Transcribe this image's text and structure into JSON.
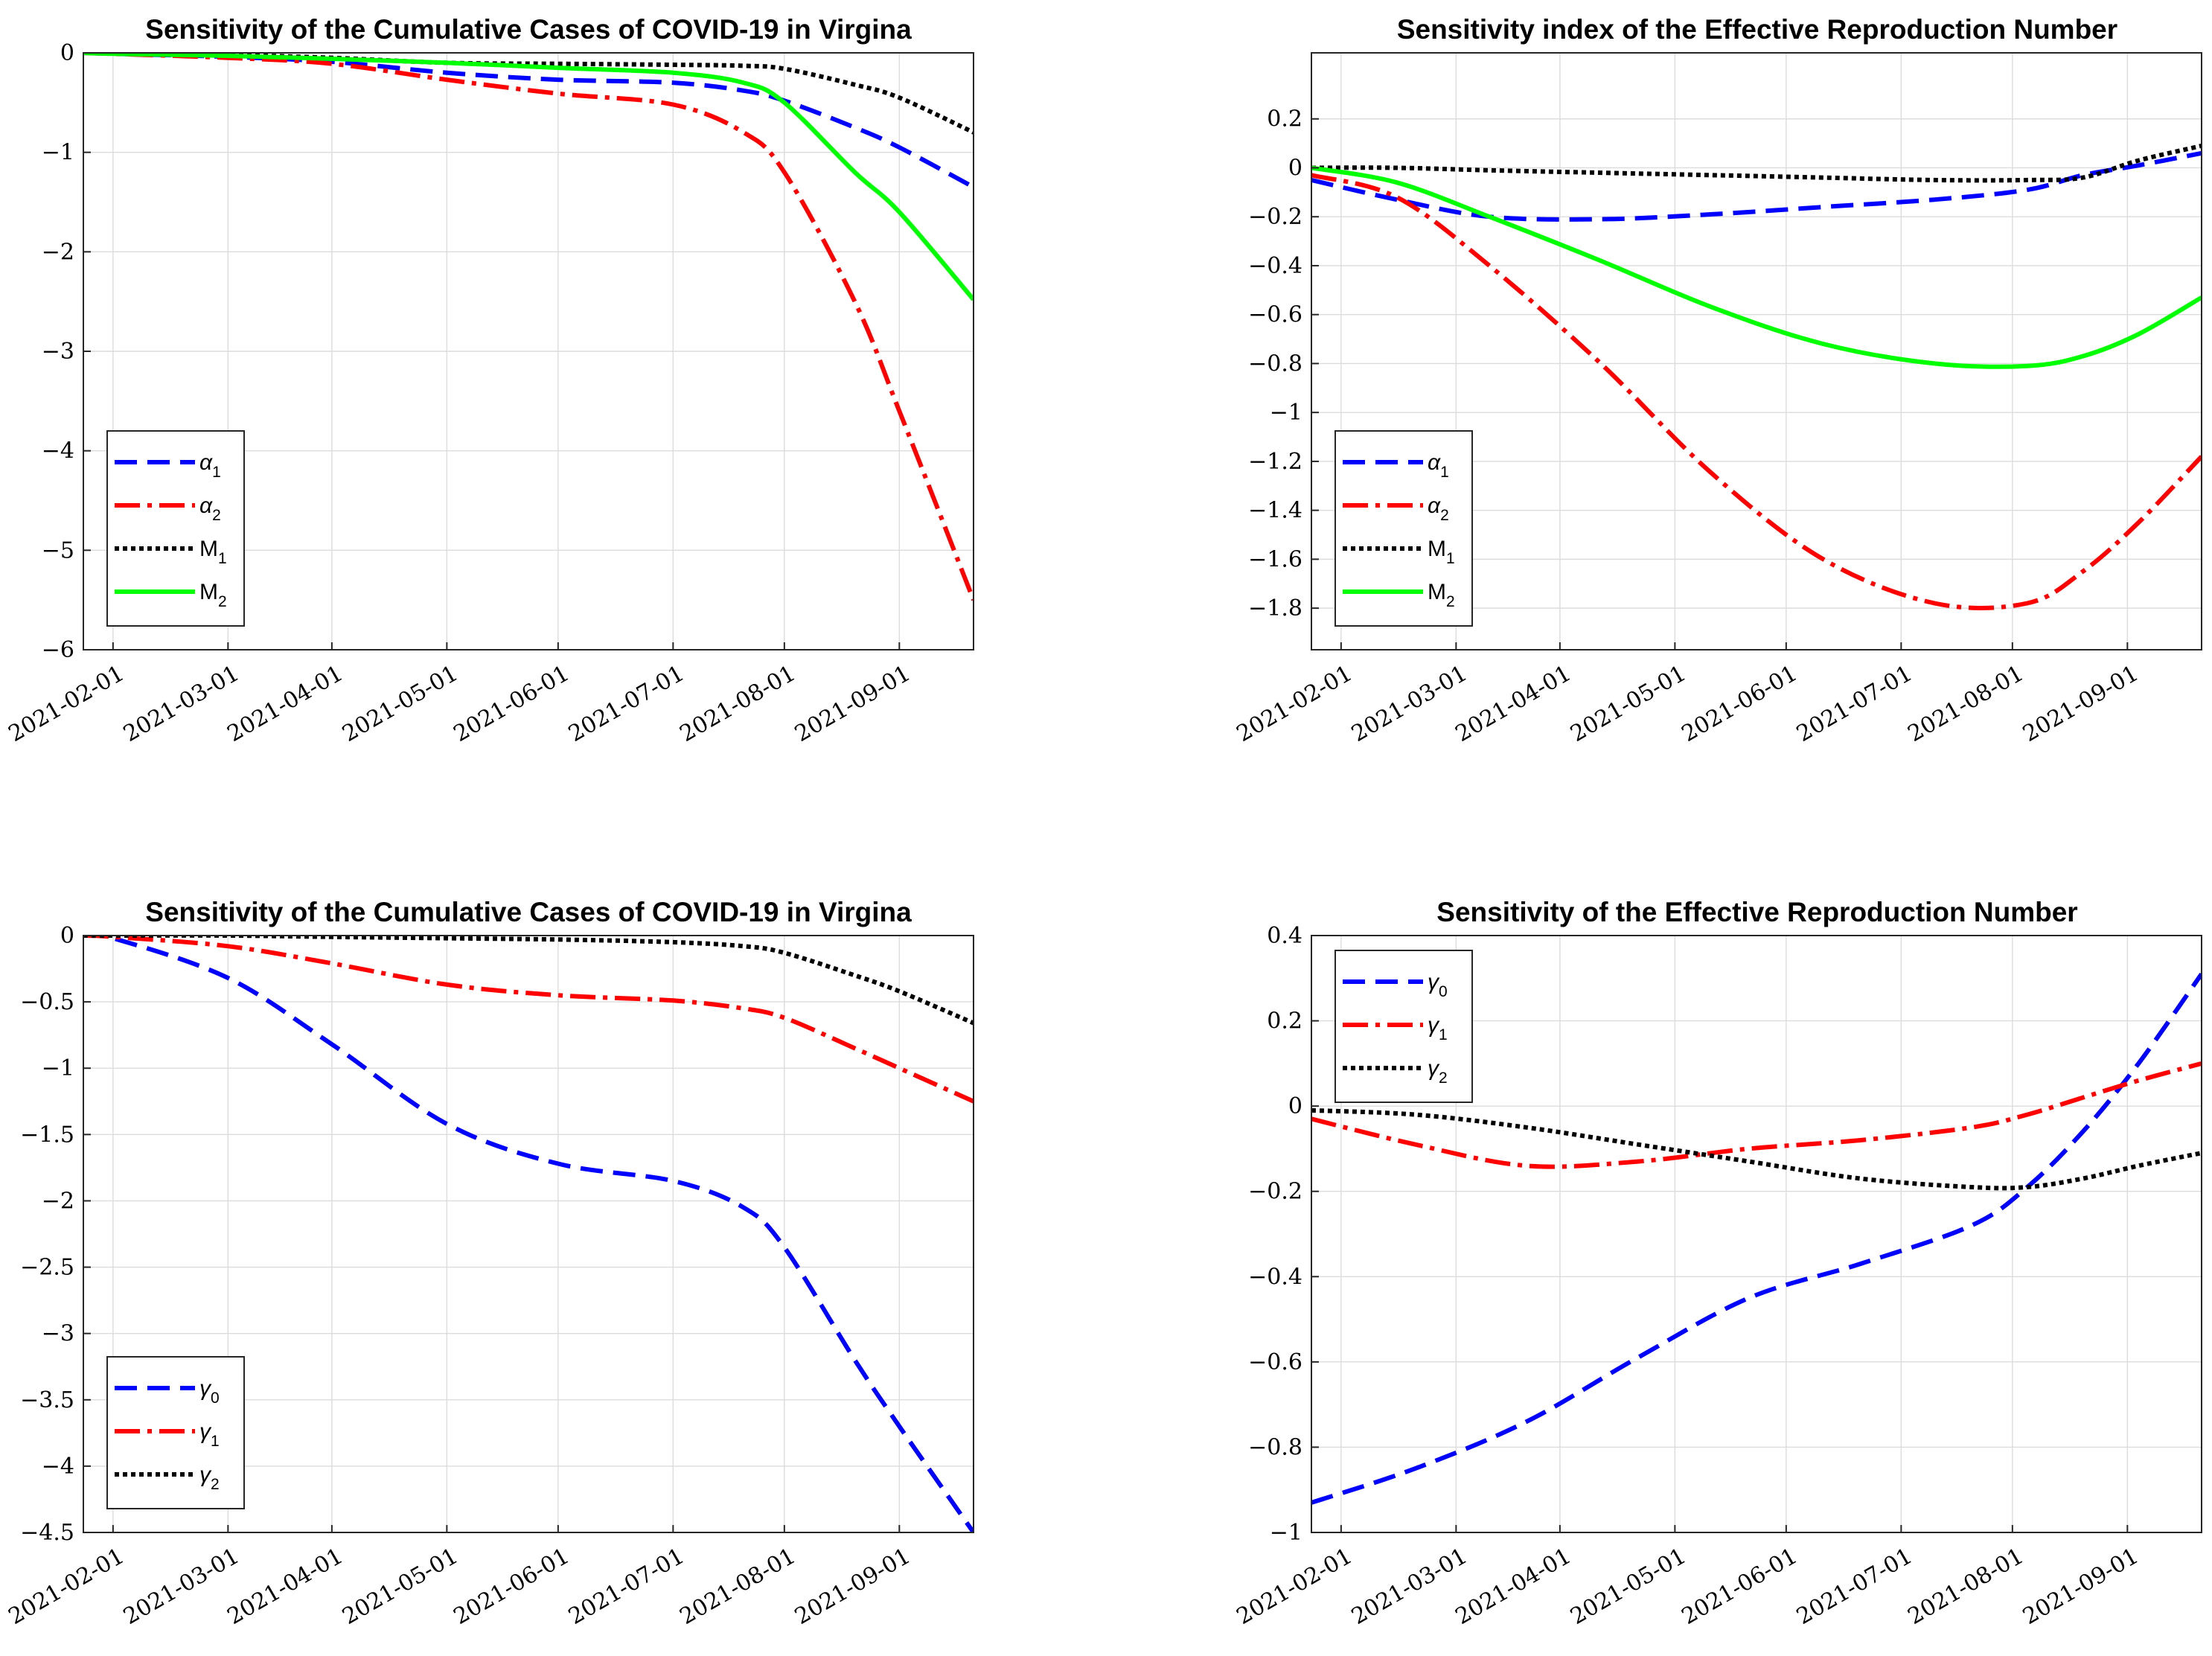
{
  "chart_data": [
    {
      "type": "line",
      "title": "Sensitivity of the Cumulative Cases of COVID-19 in Virgina",
      "xlabel": "",
      "ylabel": "",
      "xlim": [
        -8,
        232
      ],
      "ylim": [
        -6,
        0
      ],
      "x_ticks": [
        0,
        31,
        59,
        90,
        120,
        151,
        181,
        212
      ],
      "x_tick_labels": [
        "2021-02-01",
        "2021-03-01",
        "2021-04-01",
        "2021-05-01",
        "2021-06-01",
        "2021-07-01",
        "2021-08-01",
        "2021-09-01"
      ],
      "y_ticks": [
        0,
        -1,
        -2,
        -3,
        -4,
        -5,
        -6
      ],
      "y_tick_labels": [
        "0",
        "−1",
        "−2",
        "−3",
        "−4",
        "−5",
        "−6"
      ],
      "legend_position": "bottom-left",
      "x": [
        -8,
        0,
        31,
        59,
        90,
        120,
        151,
        170,
        181,
        200,
        212,
        232
      ],
      "series": [
        {
          "name": "α",
          "sub": "1",
          "color": "#0000ff",
          "dash": "dash",
          "values": [
            0,
            -0.01,
            -0.04,
            -0.09,
            -0.2,
            -0.27,
            -0.3,
            -0.38,
            -0.48,
            -0.75,
            -0.95,
            -1.35
          ]
        },
        {
          "name": "α",
          "sub": "2",
          "color": "#ff0000",
          "dash": "dashdot",
          "values": [
            0,
            -0.01,
            -0.05,
            -0.11,
            -0.27,
            -0.41,
            -0.52,
            -0.8,
            -1.2,
            -2.5,
            -3.6,
            -5.5
          ]
        },
        {
          "name": "M",
          "sub": "1",
          "color": "#000000",
          "dash": "dot",
          "values": [
            0,
            0,
            -0.02,
            -0.05,
            -0.1,
            -0.11,
            -0.12,
            -0.13,
            -0.16,
            -0.32,
            -0.45,
            -0.8
          ]
        },
        {
          "name": "M",
          "sub": "2",
          "color": "#00ff00",
          "dash": "solid",
          "values": [
            0,
            -0.01,
            -0.03,
            -0.06,
            -0.1,
            -0.15,
            -0.2,
            -0.3,
            -0.5,
            -1.2,
            -1.6,
            -2.48
          ]
        }
      ]
    },
    {
      "type": "line",
      "title": "Sensitivity index of the Effective Reproduction Number",
      "xlabel": "",
      "ylabel": "",
      "xlim": [
        -8,
        232
      ],
      "ylim": [
        -1.97,
        0.47
      ],
      "x_ticks": [
        0,
        31,
        59,
        90,
        120,
        151,
        181,
        212
      ],
      "x_tick_labels": [
        "2021-02-01",
        "2021-03-01",
        "2021-04-01",
        "2021-05-01",
        "2021-06-01",
        "2021-07-01",
        "2021-08-01",
        "2021-09-01"
      ],
      "y_ticks": [
        0.2,
        0,
        -0.2,
        -0.4,
        -0.6,
        -0.8,
        -1,
        -1.2,
        -1.4,
        -1.6,
        -1.8
      ],
      "y_tick_labels": [
        "0.2",
        "0",
        "−0.2",
        "−0.4",
        "−0.6",
        "−0.8",
        "−1",
        "−1.2",
        "−1.4",
        "−1.6",
        "−1.8"
      ],
      "legend_position": "bottom-left",
      "x": [
        -8,
        15,
        40,
        70,
        100,
        130,
        160,
        185,
        200,
        215,
        232
      ],
      "series": [
        {
          "name": "α",
          "sub": "1",
          "color": "#0000ff",
          "dash": "dash",
          "values": [
            -0.05,
            -0.13,
            -0.2,
            -0.21,
            -0.19,
            -0.16,
            -0.13,
            -0.09,
            -0.03,
            0.01,
            0.06
          ]
        },
        {
          "name": "α",
          "sub": "2",
          "color": "#ff0000",
          "dash": "dashdot",
          "values": [
            -0.03,
            -0.12,
            -0.4,
            -0.8,
            -1.25,
            -1.6,
            -1.78,
            -1.78,
            -1.65,
            -1.45,
            -1.18
          ]
        },
        {
          "name": "M",
          "sub": "1",
          "color": "#000000",
          "dash": "dot",
          "values": [
            0,
            0,
            -0.01,
            -0.02,
            -0.03,
            -0.04,
            -0.05,
            -0.05,
            -0.04,
            0.03,
            0.09
          ]
        },
        {
          "name": "M",
          "sub": "2",
          "color": "#00ff00",
          "dash": "solid",
          "values": [
            0,
            -0.06,
            -0.2,
            -0.38,
            -0.57,
            -0.72,
            -0.8,
            -0.81,
            -0.77,
            -0.68,
            -0.53
          ]
        }
      ]
    },
    {
      "type": "line",
      "title": "Sensitivity of the Cumulative Cases of COVID-19 in Virgina",
      "xlabel": "",
      "ylabel": "",
      "xlim": [
        -8,
        232
      ],
      "ylim": [
        -4.5,
        0
      ],
      "x_ticks": [
        0,
        31,
        59,
        90,
        120,
        151,
        181,
        212
      ],
      "x_tick_labels": [
        "2021-02-01",
        "2021-03-01",
        "2021-04-01",
        "2021-05-01",
        "2021-06-01",
        "2021-07-01",
        "2021-08-01",
        "2021-09-01"
      ],
      "y_ticks": [
        0,
        -0.5,
        -1,
        -1.5,
        -2,
        -2.5,
        -3,
        -3.5,
        -4,
        -4.5
      ],
      "y_tick_labels": [
        "0",
        "−0.5",
        "−1",
        "−1.5",
        "−2",
        "−2.5",
        "−3",
        "−3.5",
        "−4",
        "−4.5"
      ],
      "legend_position": "bottom-left",
      "x": [
        -8,
        0,
        31,
        59,
        90,
        120,
        151,
        170,
        181,
        200,
        212,
        232
      ],
      "series": [
        {
          "name": "γ",
          "sub": "0",
          "color": "#0000ff",
          "dash": "dash",
          "values": [
            0,
            -0.02,
            -0.32,
            -0.82,
            -1.42,
            -1.72,
            -1.85,
            -2.05,
            -2.35,
            -3.2,
            -3.7,
            -4.5
          ]
        },
        {
          "name": "γ",
          "sub": "1",
          "color": "#ff0000",
          "dash": "dashdot",
          "values": [
            0,
            -0.01,
            -0.08,
            -0.21,
            -0.37,
            -0.45,
            -0.49,
            -0.55,
            -0.62,
            -0.85,
            -1.0,
            -1.25
          ]
        },
        {
          "name": "γ",
          "sub": "2",
          "color": "#000000",
          "dash": "dot",
          "values": [
            0,
            0,
            0,
            -0.01,
            -0.02,
            -0.03,
            -0.05,
            -0.08,
            -0.13,
            -0.3,
            -0.42,
            -0.66
          ]
        }
      ]
    },
    {
      "type": "line",
      "title": "Sensitivity of the Effective Reproduction Number",
      "xlabel": "",
      "ylabel": "",
      "xlim": [
        -8,
        232
      ],
      "ylim": [
        -1,
        0.4
      ],
      "x_ticks": [
        0,
        31,
        59,
        90,
        120,
        151,
        181,
        212
      ],
      "x_tick_labels": [
        "2021-02-01",
        "2021-03-01",
        "2021-04-01",
        "2021-05-01",
        "2021-06-01",
        "2021-07-01",
        "2021-08-01",
        "2021-09-01"
      ],
      "y_ticks": [
        0.4,
        0.2,
        0,
        -0.2,
        -0.4,
        -0.6,
        -0.8,
        -1
      ],
      "y_tick_labels": [
        "0.4",
        "0.2",
        "0",
        "−0.2",
        "−0.4",
        "−0.6",
        "−0.8",
        "−1"
      ],
      "legend_position": "top-left",
      "x": [
        -8,
        20,
        50,
        80,
        110,
        140,
        170,
        185,
        200,
        215,
        232
      ],
      "series": [
        {
          "name": "γ",
          "sub": "0",
          "color": "#0000ff",
          "dash": "dash",
          "values": [
            -0.93,
            -0.85,
            -0.74,
            -0.59,
            -0.45,
            -0.37,
            -0.28,
            -0.19,
            -0.06,
            0.1,
            0.31
          ]
        },
        {
          "name": "γ",
          "sub": "1",
          "color": "#ff0000",
          "dash": "dashdot",
          "values": [
            -0.03,
            -0.09,
            -0.14,
            -0.13,
            -0.1,
            -0.08,
            -0.05,
            -0.02,
            0.02,
            0.06,
            0.1
          ]
        },
        {
          "name": "γ",
          "sub": "2",
          "color": "#000000",
          "dash": "dot",
          "values": [
            -0.01,
            -0.02,
            -0.05,
            -0.09,
            -0.13,
            -0.17,
            -0.19,
            -0.19,
            -0.17,
            -0.14,
            -0.11
          ]
        }
      ]
    }
  ]
}
